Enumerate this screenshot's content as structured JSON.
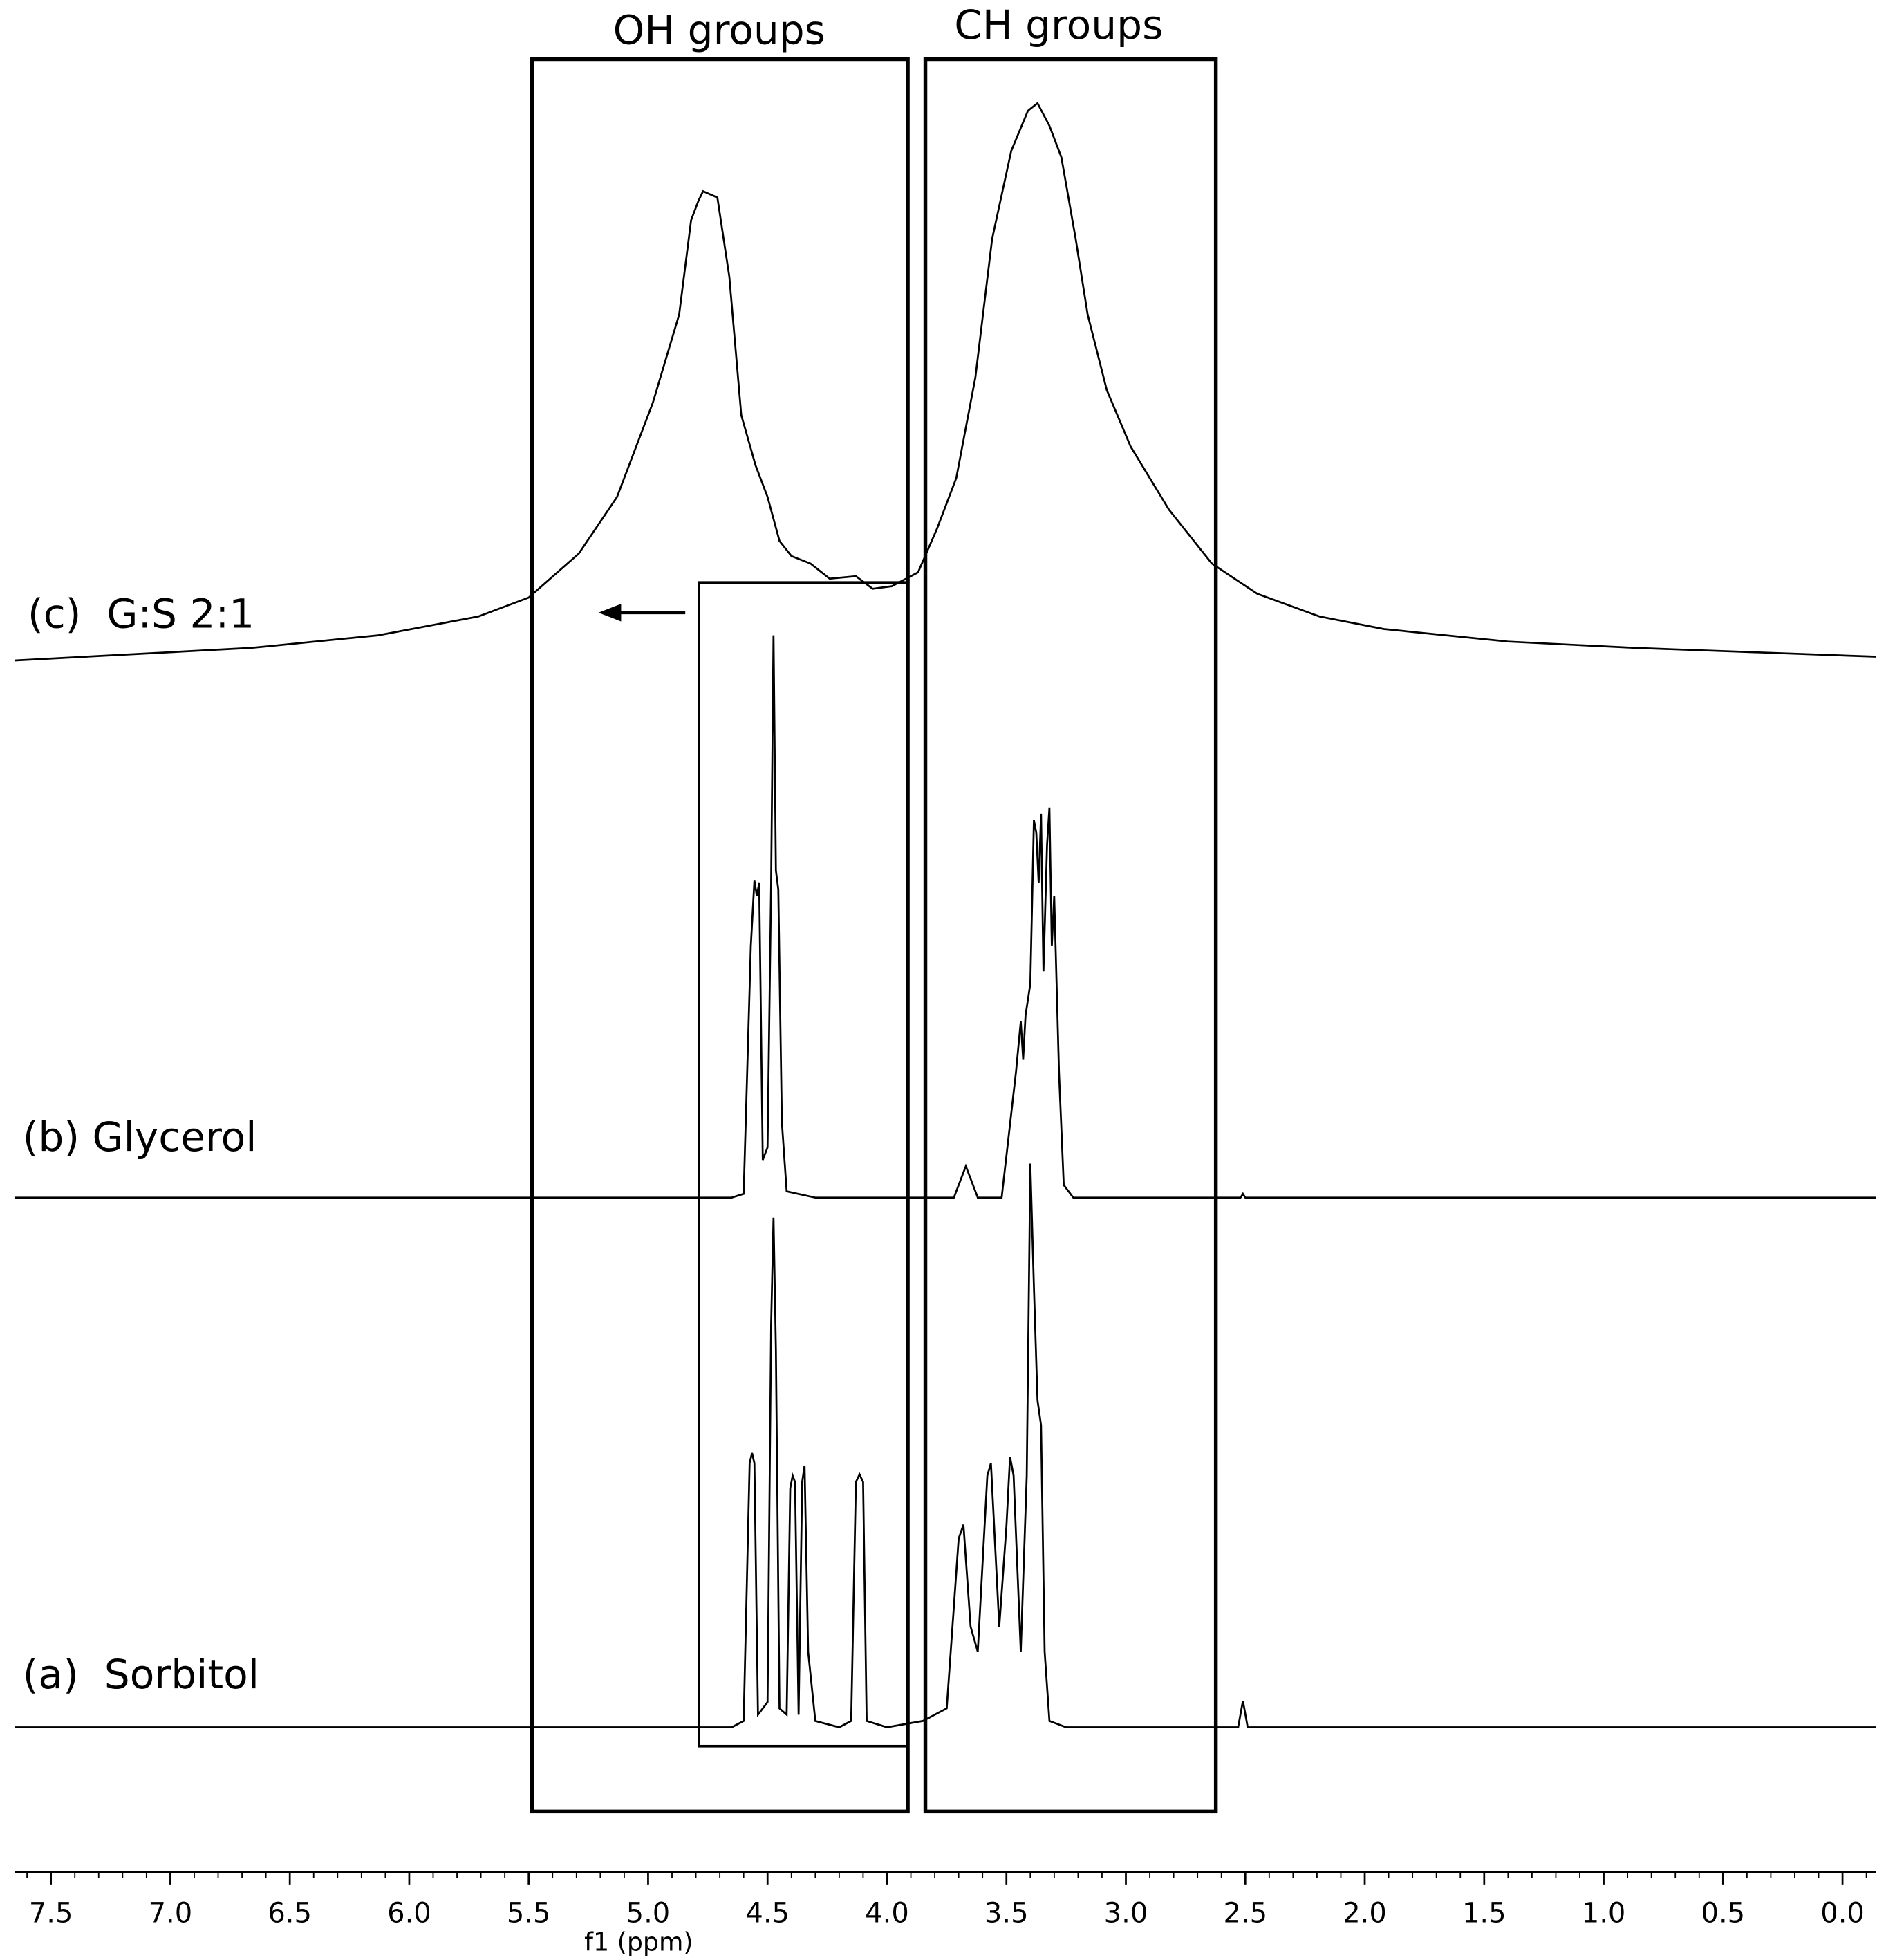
{
  "chart_data": {
    "type": "line",
    "x_label": "f1 (ppm)",
    "xlim": [
      7.65,
      -0.14
    ],
    "xticks": [
      7.5,
      {
        "value": 7,
        "label": "7.0"
      },
      6.5,
      {
        "value": 6,
        "label": "6.0"
      },
      5.5,
      {
        "value": 5,
        "label": "5.0"
      },
      4.5,
      {
        "value": 4,
        "label": "4.0"
      },
      3.5,
      {
        "value": 3,
        "label": "3.0"
      },
      2.5,
      {
        "value": 2,
        "label": "2.0"
      },
      1.5,
      {
        "value": 1,
        "label": "1.0"
      },
      0.5,
      {
        "value": 0,
        "label": "0.0"
      }
    ],
    "annotations": [
      "OH groups",
      "CH groups"
    ],
    "series": [
      {
        "name": "(a)  Sorbitol",
        "color": "#000000",
        "x": [
          7.65,
          4.65,
          4.6,
          4.575,
          4.565,
          4.555,
          4.54,
          4.5,
          4.485,
          4.475,
          4.465,
          4.45,
          4.42,
          4.405,
          4.395,
          4.385,
          4.37,
          4.355,
          4.345,
          4.33,
          4.3,
          4.2,
          4.15,
          4.13,
          4.115,
          4.1,
          4.085,
          4.0,
          3.85,
          3.75,
          3.7,
          3.68,
          3.65,
          3.62,
          3.58,
          3.565,
          3.53,
          3.5,
          3.485,
          3.47,
          3.44,
          3.415,
          3.4,
          3.385,
          3.37,
          3.355,
          3.34,
          3.32,
          3.25,
          2.53,
          2.51,
          2.49,
          -0.14
        ],
        "values": [
          0,
          0,
          5,
          210,
          218,
          210,
          10,
          20,
          320,
          405,
          300,
          15,
          10,
          190,
          200,
          195,
          10,
          195,
          208,
          60,
          5,
          0,
          5,
          195,
          201,
          195,
          5,
          0,
          5,
          15,
          150,
          161,
          80,
          60,
          200,
          210,
          80,
          160,
          215,
          200,
          60,
          200,
          448,
          350,
          260,
          240,
          60,
          5,
          0,
          0,
          21,
          0,
          0
        ]
      },
      {
        "name": "(b) Glycerol",
        "color": "#000000",
        "x": [
          7.65,
          4.65,
          4.6,
          4.57,
          4.555,
          4.545,
          4.535,
          4.52,
          4.5,
          4.485,
          4.475,
          4.465,
          4.455,
          4.44,
          4.42,
          4.3,
          3.72,
          3.67,
          3.62,
          3.52,
          3.46,
          3.44,
          3.43,
          3.42,
          3.4,
          3.385,
          3.375,
          3.365,
          3.355,
          3.345,
          3.33,
          3.32,
          3.31,
          3.3,
          3.28,
          3.26,
          3.22,
          2.52,
          2.51,
          2.5,
          -0.14
        ],
        "values": [
          0,
          0,
          3,
          200,
          252,
          240,
          250,
          30,
          40,
          250,
          447,
          260,
          245,
          60,
          5,
          0,
          0,
          25,
          0,
          0,
          100,
          140,
          110,
          145,
          170,
          300,
          290,
          250,
          305,
          180,
          280,
          310,
          200,
          240,
          100,
          10,
          0,
          0,
          3,
          0,
          0
        ]
      },
      {
        "name": "(c)  G:S 2:1",
        "color": "#000000",
        "x": [
          7.65,
          6.66,
          6.13,
          5.71,
          5.5,
          5.29,
          5.13,
          4.98,
          4.87,
          4.82,
          4.79,
          4.77,
          4.71,
          4.66,
          4.61,
          4.55,
          4.5,
          4.45,
          4.4,
          4.32,
          4.24,
          4.13,
          4.06,
          3.98,
          3.87,
          3.79,
          3.71,
          3.63,
          3.56,
          3.48,
          3.41,
          3.37,
          3.32,
          3.27,
          3.21,
          3.16,
          3.08,
          2.98,
          2.82,
          2.64,
          2.45,
          2.19,
          1.92,
          1.4,
          0.87,
          -0.14
        ],
        "values": [
          -2,
          8,
          18,
          33,
          48,
          83,
          128,
          203,
          273,
          348,
          363,
          371,
          366,
          303,
          193,
          153,
          128,
          93,
          81,
          75,
          63,
          65,
          55,
          57,
          68,
          103,
          143,
          223,
          333,
          403,
          435,
          441,
          423,
          398,
          333,
          273,
          213,
          168,
          118,
          75,
          51,
          33,
          23,
          13,
          8,
          1
        ]
      }
    ]
  }
}
